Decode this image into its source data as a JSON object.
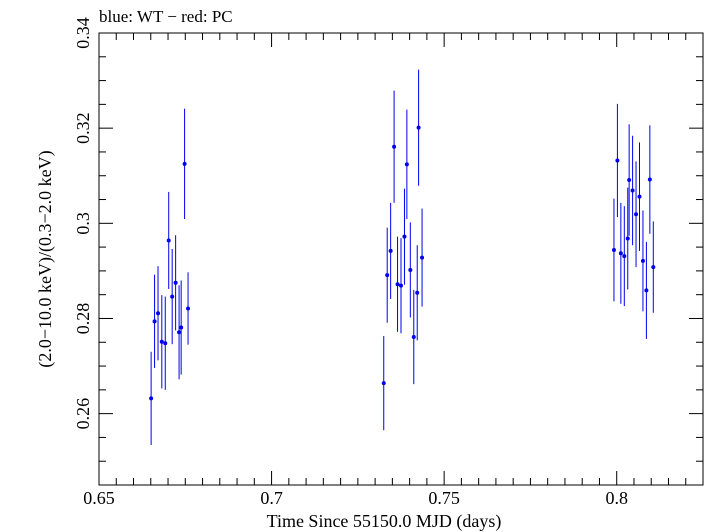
{
  "chart_data": {
    "type": "scatter",
    "title": "blue: WT − red: PC",
    "xlabel": "Time Since 55150.0 MJD (days)",
    "ylabel": "(2.0−10.0 keV)/(0.3−2.0 keV)",
    "xlim": [
      0.65,
      0.825
    ],
    "ylim": [
      0.245,
      0.34
    ],
    "x_major_ticks": [
      0.65,
      0.7,
      0.75,
      0.8
    ],
    "x_tick_labels": [
      "0.65",
      "0.7",
      "0.75",
      "0.8"
    ],
    "y_major_ticks": [
      0.26,
      0.28,
      0.3,
      0.32,
      0.34
    ],
    "y_tick_labels": [
      "0.26",
      "0.28",
      "0.3",
      "0.32",
      "0.34"
    ],
    "grid": false,
    "series": [
      {
        "color": "#0000ee",
        "points": [
          {
            "x": 0.6651,
            "y": 0.2632,
            "err": 0.0098
          },
          {
            "x": 0.6661,
            "y": 0.2794,
            "err": 0.0098
          },
          {
            "x": 0.6671,
            "y": 0.2811,
            "err": 0.0099
          },
          {
            "x": 0.6682,
            "y": 0.2751,
            "err": 0.0098
          },
          {
            "x": 0.6692,
            "y": 0.2748,
            "err": 0.0098
          },
          {
            "x": 0.6702,
            "y": 0.2964,
            "err": 0.0102
          },
          {
            "x": 0.6712,
            "y": 0.2846,
            "err": 0.01
          },
          {
            "x": 0.6722,
            "y": 0.2875,
            "err": 0.01
          },
          {
            "x": 0.6732,
            "y": 0.2771,
            "err": 0.0099
          },
          {
            "x": 0.6738,
            "y": 0.2781,
            "err": 0.0099
          },
          {
            "x": 0.6748,
            "y": 0.3125,
            "err": 0.0116
          },
          {
            "x": 0.6758,
            "y": 0.2821,
            "err": 0.0076
          },
          {
            "x": 0.7325,
            "y": 0.2664,
            "err": 0.0099
          },
          {
            "x": 0.7335,
            "y": 0.2891,
            "err": 0.01
          },
          {
            "x": 0.7345,
            "y": 0.2942,
            "err": 0.0101
          },
          {
            "x": 0.7355,
            "y": 0.3161,
            "err": 0.0118
          },
          {
            "x": 0.7365,
            "y": 0.2872,
            "err": 0.01
          },
          {
            "x": 0.7375,
            "y": 0.2869,
            "err": 0.01
          },
          {
            "x": 0.7385,
            "y": 0.2972,
            "err": 0.0101
          },
          {
            "x": 0.7392,
            "y": 0.3124,
            "err": 0.0115
          },
          {
            "x": 0.7402,
            "y": 0.2902,
            "err": 0.01
          },
          {
            "x": 0.7412,
            "y": 0.2761,
            "err": 0.0099
          },
          {
            "x": 0.7422,
            "y": 0.2854,
            "err": 0.01
          },
          {
            "x": 0.7426,
            "y": 0.3201,
            "err": 0.0122
          },
          {
            "x": 0.7436,
            "y": 0.2928,
            "err": 0.0103
          },
          {
            "x": 0.7992,
            "y": 0.2944,
            "err": 0.0108
          },
          {
            "x": 0.8002,
            "y": 0.3132,
            "err": 0.0119
          },
          {
            "x": 0.8012,
            "y": 0.2937,
            "err": 0.0106
          },
          {
            "x": 0.8022,
            "y": 0.2931,
            "err": 0.0105
          },
          {
            "x": 0.8032,
            "y": 0.2968,
            "err": 0.0107
          },
          {
            "x": 0.8036,
            "y": 0.3091,
            "err": 0.0117
          },
          {
            "x": 0.8046,
            "y": 0.3069,
            "err": 0.0115
          },
          {
            "x": 0.8056,
            "y": 0.3019,
            "err": 0.0111
          },
          {
            "x": 0.8066,
            "y": 0.3056,
            "err": 0.0114
          },
          {
            "x": 0.8076,
            "y": 0.2921,
            "err": 0.0106
          },
          {
            "x": 0.8086,
            "y": 0.2859,
            "err": 0.0102
          },
          {
            "x": 0.8096,
            "y": 0.3092,
            "err": 0.0114
          },
          {
            "x": 0.8106,
            "y": 0.2908,
            "err": 0.0096
          }
        ]
      }
    ]
  }
}
